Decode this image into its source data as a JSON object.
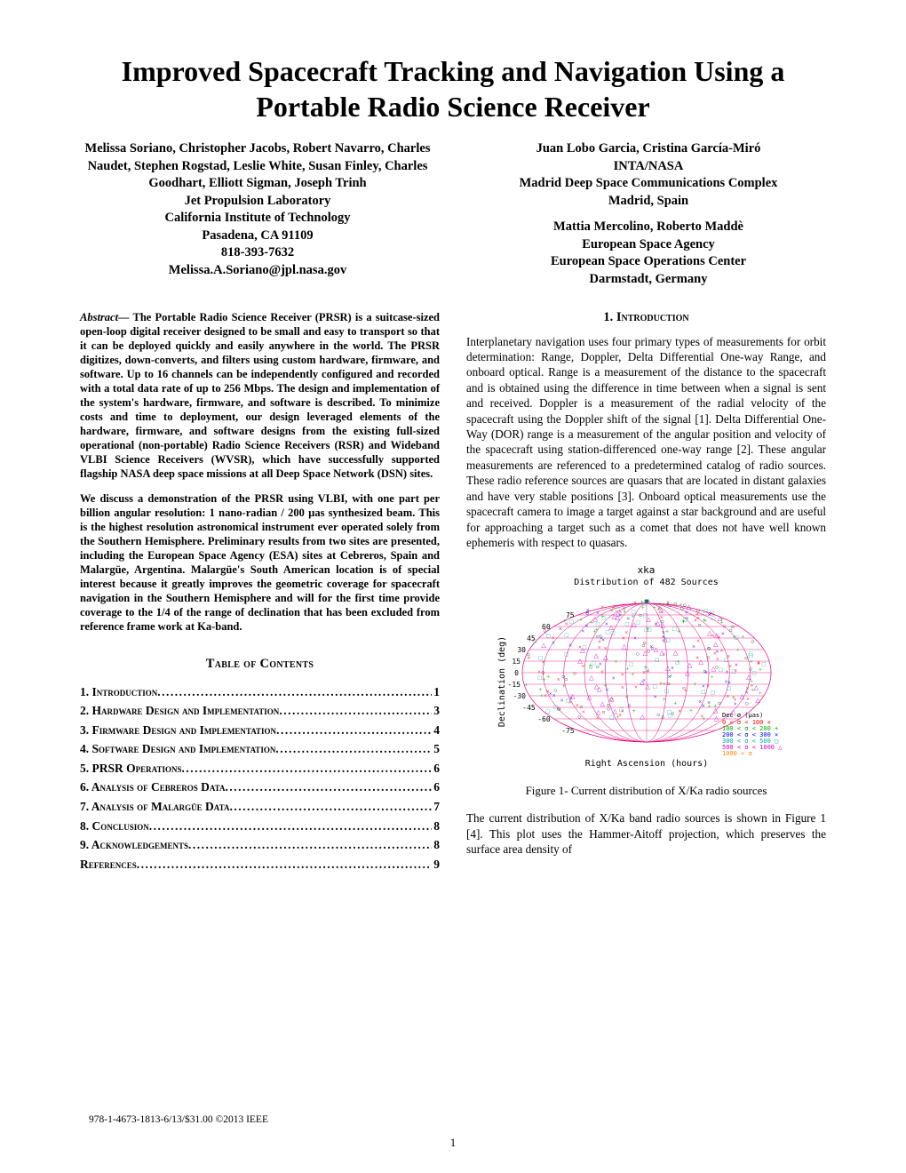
{
  "title": "Improved Spacecraft Tracking and Navigation Using a Portable Radio Science Receiver",
  "authors_left": {
    "names": "Melissa Soriano, Christopher Jacobs, Robert Navarro, Charles Naudet, Stephen Rogstad, Leslie White, Susan Finley, Charles Goodhart, Elliott Sigman, Joseph Trinh",
    "affiliation": "Jet Propulsion Laboratory",
    "org": "California Institute of Technology",
    "city": "Pasadena, CA 91109",
    "phone": "818-393-7632",
    "email": "Melissa.A.Soriano@jpl.nasa.gov"
  },
  "authors_right_1": {
    "names": "Juan Lobo Garcia, Cristina García-Miró",
    "org": "INTA/NASA",
    "affiliation": "Madrid Deep Space Communications Complex",
    "city": "Madrid, Spain"
  },
  "authors_right_2": {
    "names": "Mattia Mercolino, Roberto Maddè",
    "org": "European Space Agency",
    "affiliation": "European Space Operations Center",
    "city": "Darmstadt, Germany"
  },
  "abstract_p1_lead": "Abstract—",
  "abstract_p1": " The Portable Radio Science Receiver (PRSR) is a suitcase-sized open-loop digital receiver designed to be small and easy to transport so that it can be deployed quickly and easily anywhere in the world. The PRSR digitizes, down-converts, and filters using custom hardware, firmware, and software. Up to 16 channels can be independently configured and recorded with a total data rate of up to 256 Mbps. The design and implementation of the system's hardware, firmware, and software is described. To minimize costs and time to deployment, our design leveraged elements of the hardware, firmware, and software designs from the existing full-sized operational (non-portable) Radio Science Receivers (RSR) and Wideband VLBI Science Receivers (WVSR), which have successfully supported flagship NASA deep space missions at all Deep Space Network (DSN) sites.",
  "abstract_p2": "We discuss a demonstration of the PRSR using VLBI, with one part per billion angular resolution: 1 nano-radian / 200 µas synthesized beam. This is the highest resolution astronomical instrument ever operated solely from the Southern Hemisphere. Preliminary results from two sites are presented, including the European Space Agency (ESA) sites at Cebreros, Spain and Malargüe, Argentina. Malargüe's South American location is of special interest because it greatly improves the geometric coverage for spacecraft navigation in the Southern Hemisphere and will for the first time provide coverage to the 1/4 of the range of declination that has been excluded from reference frame work at Ka-band.",
  "toc_heading": "Table of Contents",
  "toc": [
    {
      "label": "1. Introduction",
      "page": "1"
    },
    {
      "label": "2. Hardware Design and Implementation",
      "page": "3"
    },
    {
      "label": "3. Firmware Design and Implementation",
      "page": "4"
    },
    {
      "label": "4. Software Design and Implementation",
      "page": "5"
    },
    {
      "label": "5. PRSR Operations",
      "page": "6"
    },
    {
      "label": "6. Analysis of Cebreros Data",
      "page": "6"
    },
    {
      "label": "7. Analysis of Malargüe Data",
      "page": "7"
    },
    {
      "label": "8. Conclusion",
      "page": "8"
    },
    {
      "label": "9. Acknowledgements",
      "page": "8"
    },
    {
      "label": "References",
      "page": "9"
    }
  ],
  "intro_heading_num": "1.",
  "intro_heading_word": "Introduction",
  "intro_p1": "Interplanetary navigation uses four primary types of measurements for orbit determination: Range, Doppler, Delta Differential One-way Range, and onboard optical. Range is a measurement of the distance to the spacecraft and is obtained using the difference in time between when a signal is sent and received. Doppler is a measurement of the radial velocity of the spacecraft using the Doppler shift of the signal [1]. Delta Differential One-Way (DOR) range is a measurement of the angular position and velocity of the spacecraft using station-differenced one-way range [2]. These angular measurements are referenced to a predetermined catalog of radio sources. These radio reference sources are quasars that are located in distant galaxies and have very stable positions [3]. Onboard optical measurements use the spacecraft camera to image a target against a star background and are useful for approaching a target such as a comet that does not have well known ephemeris with respect to quasars.",
  "intro_p2": "The current distribution of X/Ka band radio sources is shown in Figure 1 [4]. This plot uses the Hammer-Aitoff projection, which preserves the surface area density of",
  "figure1": {
    "title": "xka",
    "subtitle": "Distribution of 482 Sources",
    "caption": "Figure 1- Current distribution of X/Ka radio sources",
    "y_axis_label": "Declination (deg)",
    "x_axis_label": "Right Ascension (hours)",
    "dec_ticks": [
      75,
      60,
      45,
      30,
      15,
      0,
      -15,
      -30,
      -45,
      -60,
      -75
    ],
    "legend_title": "Dec σ      (μas)",
    "legend": [
      {
        "label": "0 < σ <  100 ×",
        "color": "#ff0000"
      },
      {
        "label": "100 < σ <  200 +",
        "color": "#00aa00"
      },
      {
        "label": "200 < σ <  300 ×",
        "color": "#0000ff"
      },
      {
        "label": "300 < σ <  500 □",
        "color": "#00aaaa"
      },
      {
        "label": "500 < σ < 1000 △",
        "color": "#cc00cc"
      },
      {
        "label": "1000 < σ",
        "color": "#ff8800"
      }
    ],
    "grid_color": "#e5007a",
    "background": "#ffffff",
    "point_colors": [
      "#ff0000",
      "#00aa00",
      "#0000ff",
      "#00aaaa",
      "#cc00cc",
      "#000000"
    ]
  },
  "footer_isbn": "978-1-4673-1813-6/13/$31.00 ©2013 IEEE",
  "page_number": "1"
}
